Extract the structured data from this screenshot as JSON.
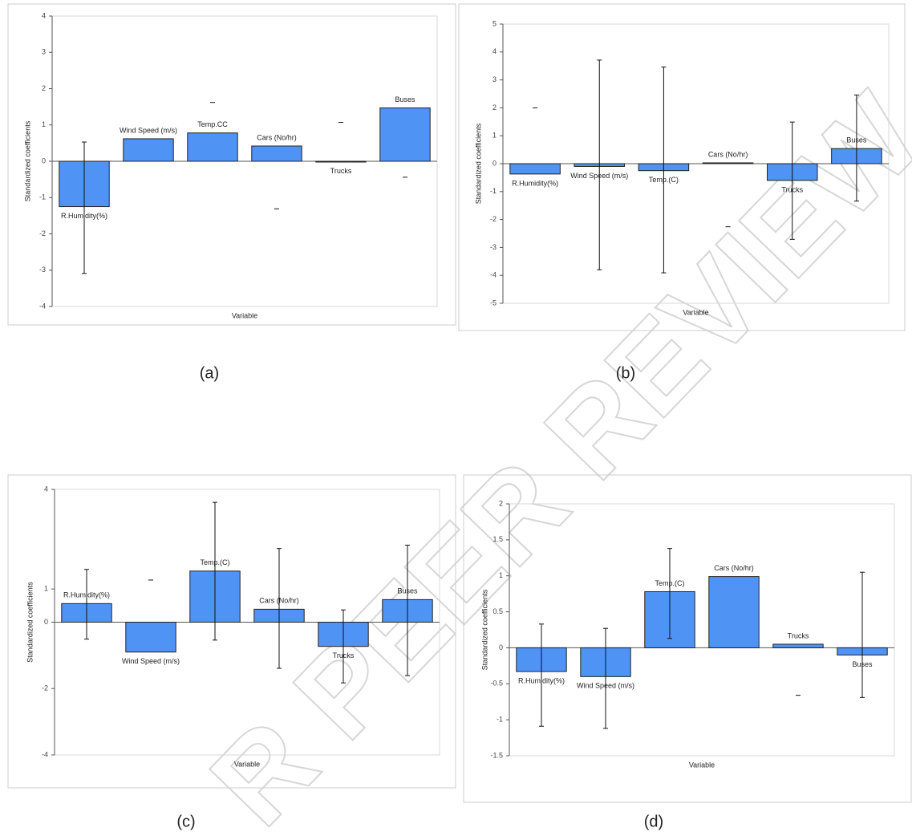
{
  "watermark": "R PEER REVIEW",
  "chart_data": [
    {
      "type": "bar",
      "label": "(a)",
      "ylabel": "Standardized coefficients",
      "xlabel": "Variable",
      "color": "#4f93f5",
      "categories": [
        "R.Humidity(%)",
        "Wind Speed (m/s)",
        "Temp.CC",
        "Cars (No/hr)",
        "Trucks",
        "Buses"
      ],
      "values": [
        -1.25,
        0.62,
        0.78,
        0.42,
        -0.01,
        1.47
      ],
      "errors": [
        [
          -3.09,
          0.53
        ],
        [
          null,
          null
        ],
        [
          null,
          1.62
        ],
        [
          -1.31,
          null
        ],
        [
          null,
          1.07
        ],
        [
          -0.44,
          null
        ]
      ],
      "ylim": [
        -4,
        4
      ],
      "yticks": [
        -4,
        -3,
        -2,
        -1,
        0,
        1,
        2,
        3,
        4
      ]
    },
    {
      "type": "bar",
      "label": "(b)",
      "ylabel": "Standardized coefficients",
      "xlabel": "Variable",
      "color": "#4f93f5",
      "categories": [
        "R.Humidity(%)",
        "Wind Speed (m/s)",
        "Temp.(C)",
        "Cars (No/hr)",
        "Trucks",
        "Buses"
      ],
      "values": [
        -0.37,
        -0.1,
        -0.25,
        0.03,
        -0.6,
        0.54
      ],
      "errors": [
        [
          null,
          2.0
        ],
        [
          -3.8,
          3.71
        ],
        [
          -3.91,
          3.46
        ],
        [
          -2.26,
          null
        ],
        [
          -2.71,
          1.49
        ],
        [
          -1.34,
          2.46
        ]
      ],
      "ylim": [
        -5,
        5
      ],
      "yticks": [
        -5,
        -4,
        -3,
        -2,
        -1,
        0,
        1,
        2,
        3,
        4,
        5
      ]
    },
    {
      "type": "bar",
      "label": "(c)",
      "ylabel": "Standardized coefficients",
      "xlabel": "Variable",
      "color": "#4f93f5",
      "categories": [
        "R.Humidity(%)",
        "Wind Speed (m/s)",
        "Temp.(C)",
        "Cars (No/hr)",
        "Trucks",
        "Buses"
      ],
      "values": [
        0.56,
        -0.9,
        1.54,
        0.39,
        -0.73,
        0.68
      ],
      "errors": [
        [
          -0.51,
          1.59
        ],
        [
          null,
          1.27
        ],
        [
          -0.54,
          3.61
        ],
        [
          -1.39,
          2.22
        ],
        [
          -1.83,
          0.37
        ],
        [
          -1.61,
          2.32
        ]
      ],
      "ylim": [
        -4,
        4
      ],
      "yticks": [
        -4,
        -2,
        0,
        1,
        4
      ]
    },
    {
      "type": "bar",
      "label": "(d)",
      "ylabel": "Standardized coefficients",
      "xlabel": "Variable",
      "color": "#4f93f5",
      "categories": [
        "R.Humidity(%)",
        "Wind Speed (m/s)",
        "Temp.(C)",
        "Cars (No/hr)",
        "Trucks",
        "Buses"
      ],
      "values": [
        -0.33,
        -0.4,
        0.78,
        0.99,
        0.05,
        -0.1
      ],
      "errors": [
        [
          -1.09,
          0.33
        ],
        [
          -1.12,
          0.27
        ],
        [
          0.13,
          1.38
        ],
        [
          null,
          null
        ],
        [
          -0.66,
          null
        ],
        [
          -0.69,
          1.05
        ]
      ],
      "ylim": [
        -1.5,
        2
      ],
      "yticks": [
        -1.5,
        -1,
        -0.5,
        0,
        0.5,
        1,
        1.5,
        2
      ]
    }
  ]
}
